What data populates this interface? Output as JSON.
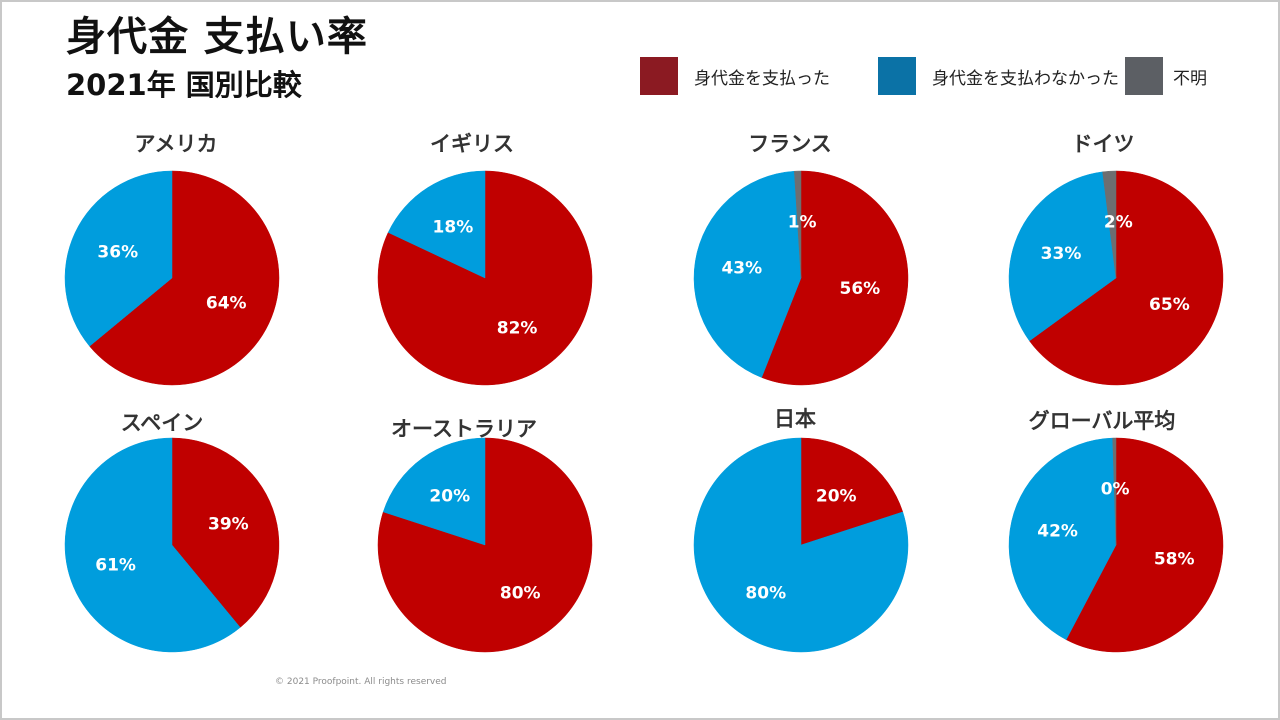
{
  "title": "身代金 支払い率",
  "subtitle": "2021年 国別比較",
  "legend": [
    {
      "label": "身代金を支払った",
      "color": "#8b1a22"
    },
    {
      "label": "身代金を支払わなかった",
      "color": "#0b72a6"
    },
    {
      "label": "不明",
      "color": "#5c5f64"
    }
  ],
  "colors": {
    "paid": "#c00000",
    "not_paid": "#009ddd",
    "unknown": "#6d6e71"
  },
  "chart_data": [
    {
      "type": "pie",
      "title": "アメリカ",
      "series": [
        {
          "name": "身代金を支払った",
          "value": 64,
          "label": "64%"
        },
        {
          "name": "不明",
          "value": 0,
          "label": ""
        },
        {
          "name": "身代金を支払わなかった",
          "value": 36,
          "label": "36%"
        }
      ]
    },
    {
      "type": "pie",
      "title": "イギリス",
      "series": [
        {
          "name": "身代金を支払った",
          "value": 82,
          "label": "82%"
        },
        {
          "name": "不明",
          "value": 0,
          "label": ""
        },
        {
          "name": "身代金を支払わなかった",
          "value": 18,
          "label": "18%"
        }
      ]
    },
    {
      "type": "pie",
      "title": "フランス",
      "series": [
        {
          "name": "身代金を支払った",
          "value": 56,
          "label": "56%"
        },
        {
          "name": "身代金を支払わなかった",
          "value": 43,
          "label": "43%"
        },
        {
          "name": "不明",
          "value": 1,
          "label": "1%"
        }
      ]
    },
    {
      "type": "pie",
      "title": "ドイツ",
      "series": [
        {
          "name": "身代金を支払った",
          "value": 65,
          "label": "65%"
        },
        {
          "name": "身代金を支払わなかった",
          "value": 33,
          "label": "33%"
        },
        {
          "name": "不明",
          "value": 2,
          "label": "2%"
        }
      ]
    },
    {
      "type": "pie",
      "title": "スペイン",
      "series": [
        {
          "name": "身代金を支払った",
          "value": 39,
          "label": "39%"
        },
        {
          "name": "不明",
          "value": 0,
          "label": ""
        },
        {
          "name": "身代金を支払わなかった",
          "value": 61,
          "label": "61%"
        }
      ]
    },
    {
      "type": "pie",
      "title": "オーストラリア",
      "series": [
        {
          "name": "身代金を支払った",
          "value": 80,
          "label": "80%"
        },
        {
          "name": "不明",
          "value": 0,
          "label": ""
        },
        {
          "name": "身代金を支払わなかった",
          "value": 20,
          "label": "20%"
        }
      ]
    },
    {
      "type": "pie",
      "title": "日本",
      "series": [
        {
          "name": "身代金を支払った",
          "value": 20,
          "label": "20%"
        },
        {
          "name": "不明",
          "value": 0,
          "label": ""
        },
        {
          "name": "身代金を支払わなかった",
          "value": 80,
          "label": "80%"
        }
      ]
    },
    {
      "type": "pie",
      "title": "グローバル平均",
      "series": [
        {
          "name": "身代金を支払った",
          "value": 58,
          "label": "58%"
        },
        {
          "name": "身代金を支払わなかった",
          "value": 42,
          "label": "42%"
        },
        {
          "name": "不明",
          "value": 0.5,
          "label": "0%"
        }
      ]
    }
  ],
  "footer": {
    "copyright": "© 2021  Proofpoint. All rights reserved"
  }
}
